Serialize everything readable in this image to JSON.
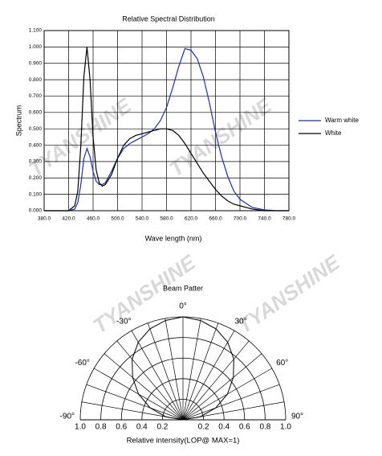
{
  "watermark": "TYANSHINE",
  "chart_data": [
    {
      "type": "line",
      "title": "Relative Spectral Distribution",
      "xlabel": "Wave length (nm)",
      "ylabel": "Spectrum",
      "xlim": [
        380,
        780
      ],
      "xticks": [
        {
          "value": 380,
          "label": "380.0"
        },
        {
          "value": 420,
          "label": "420.0"
        },
        {
          "value": 460,
          "label": "460.0"
        },
        {
          "value": 500,
          "label": "500.0"
        },
        {
          "value": 540,
          "label": "540.0"
        },
        {
          "value": 580,
          "label": "580.0"
        },
        {
          "value": 620,
          "label": "620.0"
        },
        {
          "value": 660,
          "label": "660.0"
        },
        {
          "value": 700,
          "label": "700.0"
        },
        {
          "value": 740,
          "label": "740.0"
        },
        {
          "value": 780,
          "label": "780.0"
        }
      ],
      "ylim": [
        0,
        1.1
      ],
      "yticks": [
        {
          "value": 0,
          "label": "0.000"
        },
        {
          "value": 0.1,
          "label": "0.100"
        },
        {
          "value": 0.2,
          "label": "0.200"
        },
        {
          "value": 0.3,
          "label": "0.300"
        },
        {
          "value": 0.4,
          "label": "0.400"
        },
        {
          "value": 0.5,
          "label": "0.500"
        },
        {
          "value": 0.6,
          "label": "0.600"
        },
        {
          "value": 0.7,
          "label": "0.700"
        },
        {
          "value": 0.8,
          "label": "0.800"
        },
        {
          "value": 0.9,
          "label": "0.900"
        },
        {
          "value": 1.0,
          "label": "1.000"
        },
        {
          "value": 1.1,
          "label": "1.100"
        }
      ],
      "grid": true,
      "legend": "right",
      "x": [
        380,
        400,
        420,
        430,
        435,
        440,
        445,
        450,
        455,
        460,
        465,
        470,
        475,
        480,
        490,
        500,
        510,
        520,
        530,
        540,
        550,
        560,
        570,
        580,
        590,
        600,
        610,
        620,
        630,
        640,
        650,
        660,
        670,
        680,
        690,
        700,
        720,
        740,
        760,
        780
      ],
      "series": [
        {
          "name": "Warm white",
          "color": "#1f2f9f",
          "values": [
            0,
            0,
            0,
            0.01,
            0.05,
            0.16,
            0.32,
            0.38,
            0.33,
            0.24,
            0.18,
            0.16,
            0.16,
            0.17,
            0.24,
            0.32,
            0.38,
            0.41,
            0.43,
            0.45,
            0.47,
            0.5,
            0.55,
            0.63,
            0.75,
            0.88,
            0.99,
            0.98,
            0.93,
            0.82,
            0.66,
            0.48,
            0.33,
            0.21,
            0.12,
            0.07,
            0.02,
            0.005,
            0,
            0
          ]
        },
        {
          "name": "White",
          "color": "#000000",
          "values": [
            0,
            0,
            0,
            0.03,
            0.12,
            0.4,
            0.82,
            1.0,
            0.8,
            0.45,
            0.25,
            0.17,
            0.15,
            0.16,
            0.22,
            0.32,
            0.4,
            0.44,
            0.46,
            0.47,
            0.48,
            0.49,
            0.5,
            0.5,
            0.49,
            0.46,
            0.41,
            0.35,
            0.29,
            0.23,
            0.18,
            0.13,
            0.09,
            0.06,
            0.04,
            0.03,
            0.01,
            0,
            0,
            0
          ]
        }
      ]
    },
    {
      "type": "polar",
      "title": "Beam Patter",
      "xlabel": "Relative intensity(LOP@ MAX=1)",
      "rlim": [
        0,
        1
      ],
      "rticks": [
        {
          "value": 0.2,
          "label": "0.2"
        },
        {
          "value": 0.4,
          "label": "0.4"
        },
        {
          "value": 0.6,
          "label": "0.6"
        },
        {
          "value": 0.8,
          "label": "0.8"
        },
        {
          "value": 1.0,
          "label": "1.0"
        }
      ],
      "theta_grid": [
        -90,
        -80,
        -70,
        -60,
        -50,
        -40,
        -30,
        -20,
        -10,
        0,
        10,
        20,
        30,
        40,
        50,
        60,
        70,
        80,
        90
      ],
      "theta_labels": [
        {
          "value": -90,
          "label": "-90°"
        },
        {
          "value": -60,
          "label": "-60°"
        },
        {
          "value": -30,
          "label": "-30°"
        },
        {
          "value": 0,
          "label": "0°"
        },
        {
          "value": 30,
          "label": "30°"
        },
        {
          "value": 60,
          "label": "60°"
        },
        {
          "value": 90,
          "label": "90°"
        }
      ],
      "color": "#000000",
      "angles": [
        -90,
        -80,
        -70,
        -60,
        -50,
        -40,
        -30,
        -20,
        -10,
        0,
        10,
        20,
        30,
        40,
        50,
        60,
        70,
        80,
        90
      ],
      "values": [
        0,
        0.17,
        0.34,
        0.5,
        0.64,
        0.77,
        0.87,
        0.94,
        0.98,
        1.0,
        0.98,
        0.94,
        0.87,
        0.77,
        0.64,
        0.5,
        0.34,
        0.17,
        0
      ]
    }
  ]
}
